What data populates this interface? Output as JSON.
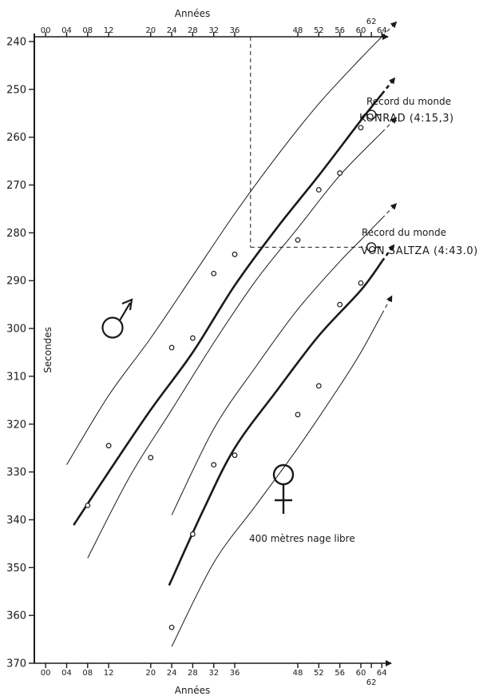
{
  "chart_data": {
    "type": "scatter",
    "title": "",
    "xlabel": "Années",
    "ylabel": "Secondes",
    "x_ticks": [
      "00",
      "04",
      "08",
      "12",
      "20",
      "24",
      "28",
      "32",
      "36",
      "48",
      "52",
      "56",
      "60",
      "62",
      "64"
    ],
    "x_ticks_top": [
      "00",
      "04",
      "08",
      "12",
      "20",
      "24",
      "28",
      "32",
      "36",
      "48",
      "52",
      "56",
      "60",
      "62",
      "64"
    ],
    "y_ticks": [
      240,
      250,
      260,
      270,
      280,
      290,
      300,
      310,
      320,
      330,
      340,
      350,
      360,
      370
    ],
    "ylim": [
      370,
      240
    ],
    "y_inverted": true,
    "series": [
      {
        "sex": "male",
        "points": [
          {
            "x": 1908,
            "y": 337
          },
          {
            "x": 1912,
            "y": 324.5
          },
          {
            "x": 1920,
            "y": 327
          },
          {
            "x": 1924,
            "y": 304
          },
          {
            "x": 1928,
            "y": 302
          },
          {
            "x": 1932,
            "y": 288.5
          },
          {
            "x": 1936,
            "y": 284.5
          },
          {
            "x": 1948,
            "y": 281.5
          },
          {
            "x": 1952,
            "y": 271
          },
          {
            "x": 1956,
            "y": 267.5
          },
          {
            "x": 1960,
            "y": 258
          }
        ],
        "trend": [
          [
            1906,
            340
          ],
          [
            1912,
            330
          ],
          [
            1920,
            317
          ],
          [
            1928,
            305
          ],
          [
            1936,
            291
          ],
          [
            1944,
            279
          ],
          [
            1952,
            268
          ],
          [
            1960,
            256.5
          ],
          [
            1964,
            251
          ]
        ],
        "upper": [
          [
            1904,
            328.5
          ],
          [
            1912,
            314
          ],
          [
            1920,
            302
          ],
          [
            1928,
            289
          ],
          [
            1936,
            276
          ],
          [
            1944,
            264
          ],
          [
            1952,
            253
          ],
          [
            1960,
            243.5
          ],
          [
            1964,
            239
          ]
        ],
        "lower": [
          [
            1908,
            348
          ],
          [
            1916,
            331
          ],
          [
            1924,
            317
          ],
          [
            1932,
            303
          ],
          [
            1940,
            290
          ],
          [
            1948,
            279
          ],
          [
            1956,
            268
          ],
          [
            1964,
            259
          ]
        ]
      },
      {
        "sex": "female",
        "points": [
          {
            "x": 1924,
            "y": 362.5
          },
          {
            "x": 1928,
            "y": 343
          },
          {
            "x": 1932,
            "y": 328.5
          },
          {
            "x": 1936,
            "y": 326.5
          },
          {
            "x": 1948,
            "y": 318
          },
          {
            "x": 1952,
            "y": 312
          },
          {
            "x": 1956,
            "y": 295
          },
          {
            "x": 1960,
            "y": 290.5
          }
        ],
        "trend": [
          [
            1924,
            352.5
          ],
          [
            1930,
            338
          ],
          [
            1936,
            325
          ],
          [
            1944,
            313
          ],
          [
            1952,
            301.5
          ],
          [
            1960,
            292
          ],
          [
            1964,
            286
          ]
        ],
        "upper": [
          [
            1924,
            339
          ],
          [
            1932,
            321
          ],
          [
            1940,
            308
          ],
          [
            1948,
            296
          ],
          [
            1956,
            286
          ],
          [
            1960,
            281.5
          ],
          [
            1964,
            277
          ]
        ],
        "lower": [
          [
            1924,
            366.5
          ],
          [
            1932,
            349
          ],
          [
            1940,
            337
          ],
          [
            1948,
            325
          ],
          [
            1956,
            312
          ],
          [
            1960,
            305
          ],
          [
            1964,
            297
          ]
        ]
      }
    ],
    "annotations": {
      "male_record_heading": "Record du monde",
      "male_record_name": "KONRAD (4:15,3)",
      "female_record_heading": "Record du monde",
      "female_record_name": "VON SALTZA (4:43.0)",
      "event": "400 mètres nage libre"
    },
    "records": [
      {
        "x": 1962,
        "y": 255.3
      },
      {
        "x": 1962,
        "y": 283
      }
    ],
    "guide": {
      "x": 1939,
      "y": 283
    }
  }
}
